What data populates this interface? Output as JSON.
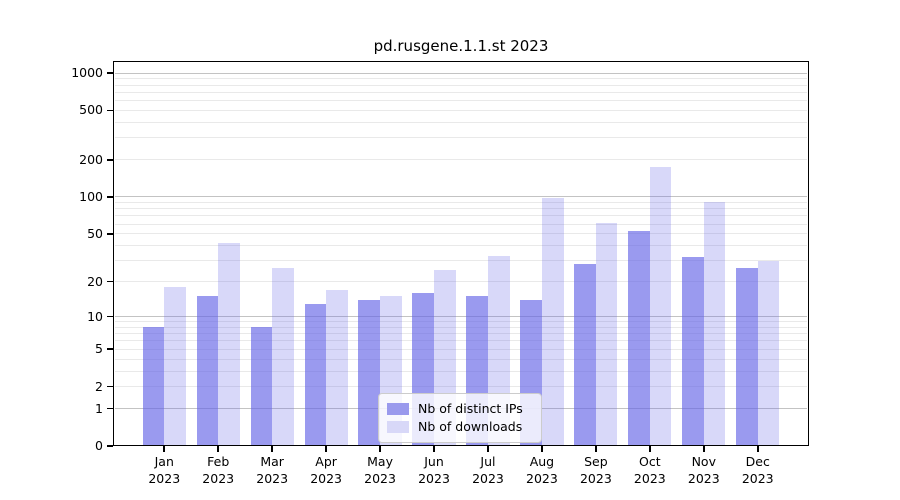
{
  "chart_data": {
    "type": "bar",
    "title": "pd.rusgene.1.1.st 2023",
    "year": "2023",
    "categories": [
      "Jan",
      "Feb",
      "Mar",
      "Apr",
      "May",
      "Jun",
      "Jul",
      "Aug",
      "Sep",
      "Oct",
      "Nov",
      "Dec"
    ],
    "series": [
      {
        "name": "Nb of distinct IPs",
        "color": "rgba(100,100,230,0.65)",
        "legend_color": "#9a9aed",
        "values": [
          8,
          15,
          8,
          13,
          14,
          16,
          15,
          14,
          28,
          53,
          32,
          26
        ]
      },
      {
        "name": "Nb of downloads",
        "color": "rgba(100,100,230,0.25)",
        "legend_color": "#d8d8f8",
        "values": [
          18,
          42,
          26,
          17,
          15,
          25,
          33,
          97,
          61,
          175,
          91,
          30
        ]
      }
    ],
    "y_scale": "log10(1+value)",
    "y_ticks": [
      0,
      1,
      2,
      5,
      10,
      20,
      50,
      100,
      200,
      500,
      1000
    ],
    "y_major_gridlines": [
      1,
      10,
      100,
      1000
    ],
    "y_minor_gridlines": [
      2,
      3,
      4,
      5,
      6,
      7,
      8,
      9,
      20,
      30,
      40,
      50,
      60,
      70,
      80,
      90,
      200,
      300,
      400,
      500,
      600,
      700,
      800,
      900
    ],
    "ylim": [
      0,
      1250
    ],
    "xlabel": "",
    "ylabel": "",
    "grid": true,
    "legend_position": "lower center",
    "colors": {
      "major_grid": "#c3c3c3",
      "minor_grid": "#e9e9e9",
      "axis": "#000000",
      "text": "#000000",
      "legend_border": "#cccccc",
      "legend_bg": "rgba(255,255,255,0.8)"
    }
  }
}
